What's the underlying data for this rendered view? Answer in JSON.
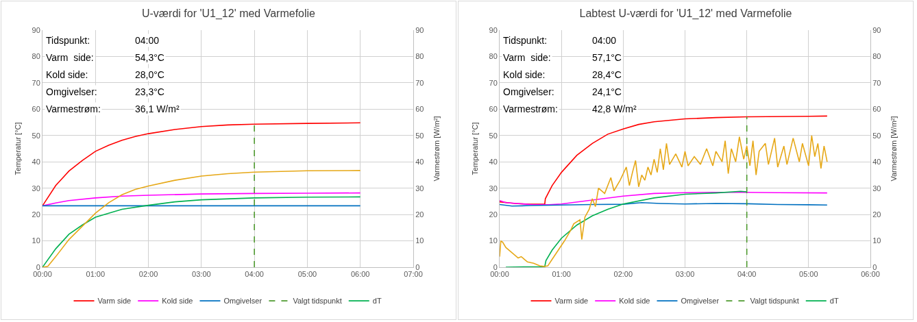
{
  "chart_data": [
    {
      "type": "line",
      "title": "U-værdi for 'U1_12' med Varmefolie",
      "ylabel": "Temperatur [°C]",
      "y2label": "Varmestrøm [W/m²]",
      "annotations": [
        "Tidspunkt:",
        "04:00",
        "Varm  side:",
        "54,3°C",
        "Kold side:",
        "28,0°C",
        "Omgivelser:",
        "23,3°C",
        "Varmestrøm:",
        "36,1 W/m²"
      ],
      "xlim": [
        0,
        7
      ],
      "xticks": [
        {
          "value": 0,
          "label": "00:00"
        },
        {
          "value": 1,
          "label": "01:00"
        },
        {
          "value": 2,
          "label": "02:00"
        },
        {
          "value": 3,
          "label": "03:00"
        },
        {
          "value": 4,
          "label": "04:00"
        },
        {
          "value": 5,
          "label": "05:00"
        },
        {
          "value": 6,
          "label": "06:00"
        },
        {
          "value": 7,
          "label": "07:00"
        }
      ],
      "ylim": [
        0,
        90
      ],
      "yticks": [
        0,
        10,
        20,
        30,
        40,
        50,
        60,
        70,
        80,
        90
      ],
      "y2lim": [
        0,
        90
      ],
      "y2ticks": [
        0,
        10,
        20,
        30,
        40,
        50,
        60,
        70,
        80,
        90
      ],
      "grid": true,
      "legend": "bottom",
      "marker": "none",
      "line_style": "solid",
      "series": [
        {
          "name": "Varm side",
          "color": "#ff0000",
          "x": [
            0,
            0.25,
            0.5,
            0.75,
            1,
            1.25,
            1.5,
            1.75,
            2,
            2.5,
            3,
            3.5,
            4,
            5,
            6
          ],
          "values": [
            23.3,
            31,
            36.5,
            40.5,
            44,
            46.3,
            48.2,
            49.6,
            50.7,
            52.3,
            53.4,
            54,
            54.3,
            54.6,
            54.8
          ]
        },
        {
          "name": "Kold side",
          "color": "#ff00ff",
          "x": [
            0,
            0.25,
            0.5,
            1,
            1.5,
            2,
            3,
            4,
            5,
            6
          ],
          "values": [
            23.3,
            24.4,
            25.3,
            26.3,
            27,
            27.3,
            27.8,
            28,
            28.1,
            28.2
          ]
        },
        {
          "name": "Omgivelser",
          "color": "#0070c0",
          "x": [
            0,
            6
          ],
          "values": [
            23.3,
            23.3
          ]
        },
        {
          "name": "Valgt tidspunkt",
          "color": "#4e9a2e",
          "line_style": "dashed",
          "x": [
            4,
            4
          ],
          "values": [
            0,
            54.3
          ]
        },
        {
          "name": "dT",
          "color": "#00b050",
          "x": [
            0,
            0.25,
            0.5,
            0.75,
            1,
            1.5,
            2,
            2.5,
            3,
            4,
            5,
            6
          ],
          "values": [
            0,
            7,
            12.5,
            16,
            19,
            22,
            23.5,
            24.8,
            25.6,
            26.3,
            26.6,
            26.7
          ]
        },
        {
          "color": "#e6a817",
          "axis": "y2",
          "x": [
            0,
            0.1,
            0.25,
            0.5,
            0.75,
            1,
            1.25,
            1.5,
            1.75,
            2,
            2.5,
            3,
            3.5,
            4,
            5,
            6
          ],
          "values": [
            0,
            0.3,
            4,
            10.5,
            15.5,
            20.5,
            24.5,
            27.5,
            29.5,
            30.8,
            33,
            34.6,
            35.5,
            36.1,
            36.6,
            36.7
          ]
        }
      ]
    },
    {
      "type": "line",
      "title": "Labtest U-værdi for 'U1_12' med Varmefolie",
      "ylabel": "Temperatur [°C]",
      "y2label": "Varmestrøm [W/m²]",
      "annotations": [
        "Tidspunkt:",
        "04:00",
        "Varm  side:",
        "57,1°C",
        "Kold side:",
        "28,4°C",
        "Omgivelser:",
        "24,1°C",
        "Varmestrøm:",
        "42,8 W/m²"
      ],
      "xlim": [
        0,
        6
      ],
      "xticks": [
        {
          "value": 0,
          "label": "00:00"
        },
        {
          "value": 1,
          "label": "01:00"
        },
        {
          "value": 2,
          "label": "02:00"
        },
        {
          "value": 3,
          "label": "03:00"
        },
        {
          "value": 4,
          "label": "04:00"
        },
        {
          "value": 5,
          "label": "05:00"
        },
        {
          "value": 6,
          "label": "06:00"
        }
      ],
      "ylim": [
        0,
        90
      ],
      "yticks": [
        0,
        10,
        20,
        30,
        40,
        50,
        60,
        70,
        80,
        90
      ],
      "y2lim": [
        0,
        90
      ],
      "y2ticks": [
        0,
        10,
        20,
        30,
        40,
        50,
        60,
        70,
        80,
        90
      ],
      "grid": true,
      "legend": "bottom",
      "marker": "none",
      "line_style": "solid",
      "series": [
        {
          "name": "Varm side",
          "color": "#ff0000",
          "x": [
            0,
            0.25,
            0.5,
            0.73,
            0.74,
            0.85,
            1,
            1.25,
            1.5,
            1.75,
            2,
            2.25,
            2.5,
            3,
            3.5,
            4,
            5,
            5.3
          ],
          "values": [
            24.8,
            24.2,
            23.9,
            23.9,
            26,
            31,
            36,
            42.5,
            47,
            50.5,
            52.5,
            54.2,
            55.2,
            56.3,
            56.8,
            57.1,
            57.3,
            57.4
          ]
        },
        {
          "name": "Kold side",
          "color": "#ff00ff",
          "x": [
            0,
            0.1,
            0.5,
            0.8,
            1,
            1.5,
            2,
            2.5,
            3,
            3.5,
            4,
            4.5,
            5.3
          ],
          "values": [
            25.3,
            24.5,
            23.8,
            23.7,
            24,
            25.5,
            27,
            28,
            28.3,
            28.4,
            28.4,
            28.3,
            28.2
          ]
        },
        {
          "name": "Omgivelser",
          "color": "#0070c0",
          "x": [
            0,
            0.2,
            0.5,
            1,
            1.5,
            2,
            2.3,
            2.6,
            3,
            3.5,
            4,
            4.5,
            5,
            5.3
          ],
          "values": [
            23.8,
            23.2,
            23.4,
            23.6,
            23.8,
            23.9,
            24.5,
            24.2,
            24,
            24.2,
            24.1,
            23.8,
            23.7,
            23.6
          ]
        },
        {
          "name": "Valgt tidspunkt",
          "color": "#4e9a2e",
          "line_style": "dashed",
          "x": [
            4,
            4
          ],
          "values": [
            0,
            57.1
          ]
        },
        {
          "name": "dT",
          "color": "#00b050",
          "x": [
            0.1,
            0.73,
            0.75,
            0.85,
            1,
            1.25,
            1.5,
            1.75,
            2,
            2.5,
            3,
            3.5,
            3.9,
            4
          ],
          "values": [
            0,
            0.2,
            2.5,
            6.5,
            11,
            16,
            19.5,
            22,
            24,
            26.3,
            27.7,
            28.2,
            28.8,
            28.6
          ]
        },
        {
          "color": "#e6a817",
          "axis": "y2",
          "x": [
            0,
            0.02,
            0.05,
            0.1,
            0.2,
            0.3,
            0.35,
            0.45,
            0.55,
            0.65,
            0.72,
            0.78,
            0.85,
            0.95,
            1.05,
            1.15,
            1.2,
            1.3,
            1.33,
            1.38,
            1.45,
            1.5,
            1.55,
            1.6,
            1.7,
            1.8,
            1.85,
            1.95,
            2.05,
            2.1,
            2.15,
            2.2,
            2.25,
            2.3,
            2.35,
            2.4,
            2.45,
            2.5,
            2.55,
            2.6,
            2.65,
            2.7,
            2.75,
            2.85,
            2.95,
            3,
            3.05,
            3.15,
            3.25,
            3.35,
            3.45,
            3.5,
            3.6,
            3.65,
            3.7,
            3.75,
            3.82,
            3.88,
            3.95,
            4,
            4.05,
            4.1,
            4.15,
            4.2,
            4.3,
            4.35,
            4.45,
            4.5,
            4.6,
            4.65,
            4.75,
            4.85,
            4.9,
            5,
            5.05,
            5.1,
            5.15,
            5.2,
            5.25,
            5.3
          ],
          "values": [
            4,
            10,
            9.5,
            7.5,
            5.5,
            3.5,
            4,
            2,
            1.5,
            0.5,
            0.3,
            0.5,
            3,
            6.5,
            10,
            14,
            16.5,
            18,
            10.5,
            19,
            22,
            26,
            23,
            30,
            28,
            34,
            29,
            33,
            38,
            31,
            36,
            40.5,
            30.5,
            35,
            33,
            38,
            35,
            41,
            36,
            45,
            37,
            47,
            39,
            43,
            38,
            44,
            38.5,
            42,
            39,
            45,
            38.5,
            44,
            40,
            48,
            35.5,
            45,
            40,
            49.5,
            41,
            46,
            38.5,
            48,
            35,
            44,
            47,
            39,
            49,
            38,
            46,
            39,
            49,
            40,
            47,
            38.5,
            50,
            42,
            47,
            37.5,
            46,
            40
          ]
        }
      ]
    }
  ]
}
